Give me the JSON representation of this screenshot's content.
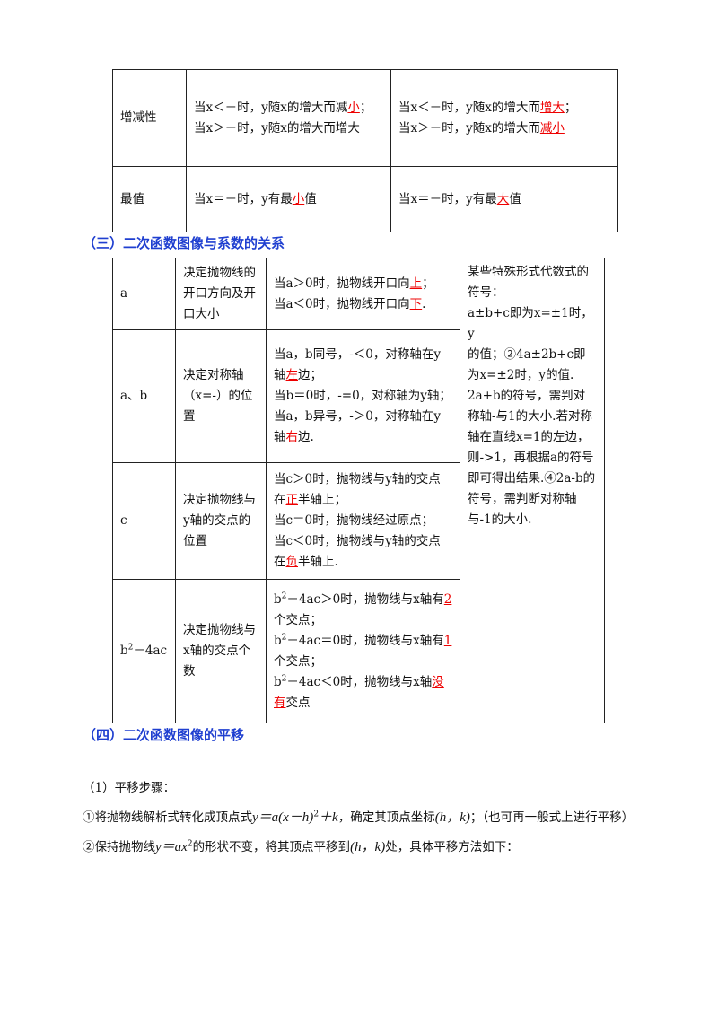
{
  "table1": {
    "rows": [
      [
        [
          [
            "增减性"
          ]
        ],
        [
          [
            "当x＜－时，y随x的增大而减",
            {
              "text": "小",
              "emphasis": true
            },
            "；当x＞－时，y随x的增大而增大"
          ]
        ],
        [
          [
            "当x＜－时，y随x的增大而",
            {
              "text": "增大",
              "emphasis": true
            },
            "；"
          ],
          [
            "当x＞－时，y随x的增大而",
            {
              "text": "减小",
              "emphasis": true
            }
          ]
        ]
      ],
      [
        [
          [
            "最值"
          ]
        ],
        [
          [
            "当x＝－时，y有最",
            {
              "text": "小",
              "emphasis": true
            },
            "值"
          ]
        ],
        [
          [
            "当x＝－时，y有最",
            {
              "text": "大",
              "emphasis": true
            },
            "值"
          ]
        ]
      ]
    ]
  },
  "heading3": "（三）二次函数图像与系数的关系",
  "table2": {
    "rows": [
      [
        [
          [
            "a"
          ]
        ],
        [
          [
            "决定抛物线的开口方向及开口大小"
          ]
        ],
        [
          [
            "当a＞0时，抛物线开口向",
            {
              "text": "上",
              "emphasis": true
            },
            "；"
          ],
          [
            "当a＜0时，抛物线开口向",
            {
              "text": "下",
              "emphasis": true
            },
            "."
          ]
        ]
      ],
      [
        [
          [
            "a、b"
          ]
        ],
        [
          [
            "决定对称轴（x=-）的位置"
          ]
        ],
        [
          [
            "当a，b同号，-＜0，对称轴在y轴",
            {
              "text": "左",
              "emphasis": true
            },
            "边；"
          ],
          [
            "当b＝0时，-=0，对称轴为y轴；"
          ],
          [
            "当a，b异号，-＞0，对称轴在y轴",
            {
              "text": "右",
              "emphasis": true
            },
            "边."
          ]
        ]
      ],
      [
        [
          [
            "c"
          ]
        ],
        [
          [
            "决定抛物线与y轴的交点的位置"
          ]
        ],
        [
          [
            "当c＞0时，抛物线与y轴的交点在",
            {
              "text": "正",
              "emphasis": true
            },
            "半轴上；"
          ],
          [
            "当c＝0时，抛物线经过原点；"
          ],
          [
            "当c＜0时，抛物线与y轴的交点在",
            {
              "text": "负",
              "emphasis": true
            },
            "半轴上."
          ]
        ]
      ],
      [
        [
          [
            "b",
            {
              "text": "2",
              "sup": true
            },
            "－4ac"
          ]
        ],
        [
          [
            "决定抛物线与x轴的交点个数"
          ]
        ],
        [
          [
            "b",
            {
              "text": "2",
              "sup": true
            },
            "－4ac＞0时，抛物线与x轴有",
            {
              "text": "2",
              "emphasis": true
            },
            "个交点；"
          ],
          [
            "b",
            {
              "text": "2",
              "sup": true
            },
            "－4ac＝0时，抛物线与x轴有",
            {
              "text": "1",
              "emphasis": true
            },
            "个交点；"
          ],
          [
            "b",
            {
              "text": "2",
              "sup": true
            },
            "－4ac＜0时，抛物线与x轴",
            {
              "text": "没有",
              "emphasis": true
            },
            "交点"
          ]
        ]
      ]
    ],
    "side": [
      [
        "某些特殊形式代数式的符号："
      ],
      [
        "a±b+c即为x=±1时，y"
      ],
      [
        "的值；②4a±2b+c即为x=±2时，y的值."
      ],
      [
        "2a+b的符号，需判对称轴-与1的大小.若对称轴在直线x=1的左边，则->1，再根据a的符号即可得出结果.④2a-b的符号，需判断对称轴与-1的大小."
      ]
    ]
  },
  "heading4": "（四）二次函数图像的平移",
  "body": [
    [
      "（1）平移步骤："
    ],
    [
      "①将抛物线解析式转化成顶点式",
      {
        "text": "y＝a(x－h)",
        "formula": true
      },
      {
        "text": "2",
        "sup": true
      },
      {
        "text": "＋k",
        "formula": true
      },
      "，确定其顶点坐标",
      {
        "text": "(h，k)",
        "formula": true
      },
      "；（也可再一般式上进行平移）"
    ],
    [
      "②保持抛物线",
      {
        "text": "y＝ax",
        "formula": true
      },
      {
        "text": "2",
        "sup": true
      },
      "的形状不变，将其顶点平移到",
      {
        "text": "(h，k)",
        "formula": true
      },
      "处，具体平移方法如下："
    ]
  ]
}
